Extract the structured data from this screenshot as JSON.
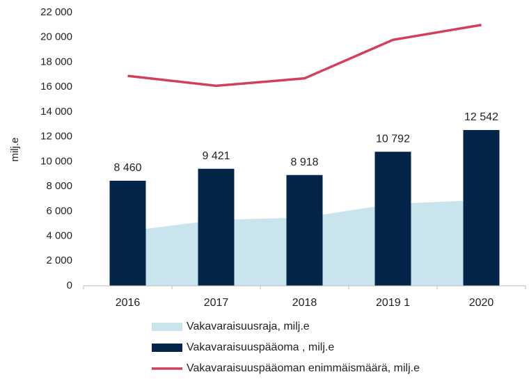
{
  "chart_data": {
    "type": "combo",
    "y_label": "milj.e",
    "categories": [
      "2016",
      "2017",
      "2018",
      "2019 1",
      "2020"
    ],
    "series": [
      {
        "name": "Vakavaraisuusraja, milj.e",
        "type": "area",
        "color": "#c9e4ec",
        "values": [
          4400,
          5300,
          5500,
          6600,
          6900
        ]
      },
      {
        "name": "Vakavaraisuuspääoma , milj.e",
        "type": "bar",
        "color": "#03254a",
        "values": [
          8460,
          9421,
          8918,
          10792,
          12542
        ],
        "value_labels": [
          "8 460",
          "9 421",
          "8 918",
          "10 792",
          "12 542"
        ]
      },
      {
        "name": "Vakavaraisuuspääoman enimmäismäärä, milj.e",
        "type": "line",
        "color": "#d33f58",
        "values": [
          16900,
          16100,
          16700,
          19800,
          21000
        ]
      }
    ],
    "ylim": [
      0,
      22000
    ],
    "yticks": [
      0,
      {
        "value": 2000,
        "label": "2 000"
      },
      {
        "value": 4000,
        "label": "4 000"
      },
      {
        "value": 6000,
        "label": "6 000"
      },
      {
        "value": 8000,
        "label": "8 000"
      },
      {
        "value": 10000,
        "label": "10 000"
      },
      {
        "value": 12000,
        "label": "12 000"
      },
      {
        "value": 14000,
        "label": "14 000"
      },
      {
        "value": 16000,
        "label": "16 000"
      },
      {
        "value": 18000,
        "label": "18 000"
      },
      {
        "value": 20000,
        "label": "20 000"
      },
      {
        "value": 22000,
        "label": "22 000"
      }
    ],
    "grid": false,
    "legend": "bottom"
  }
}
